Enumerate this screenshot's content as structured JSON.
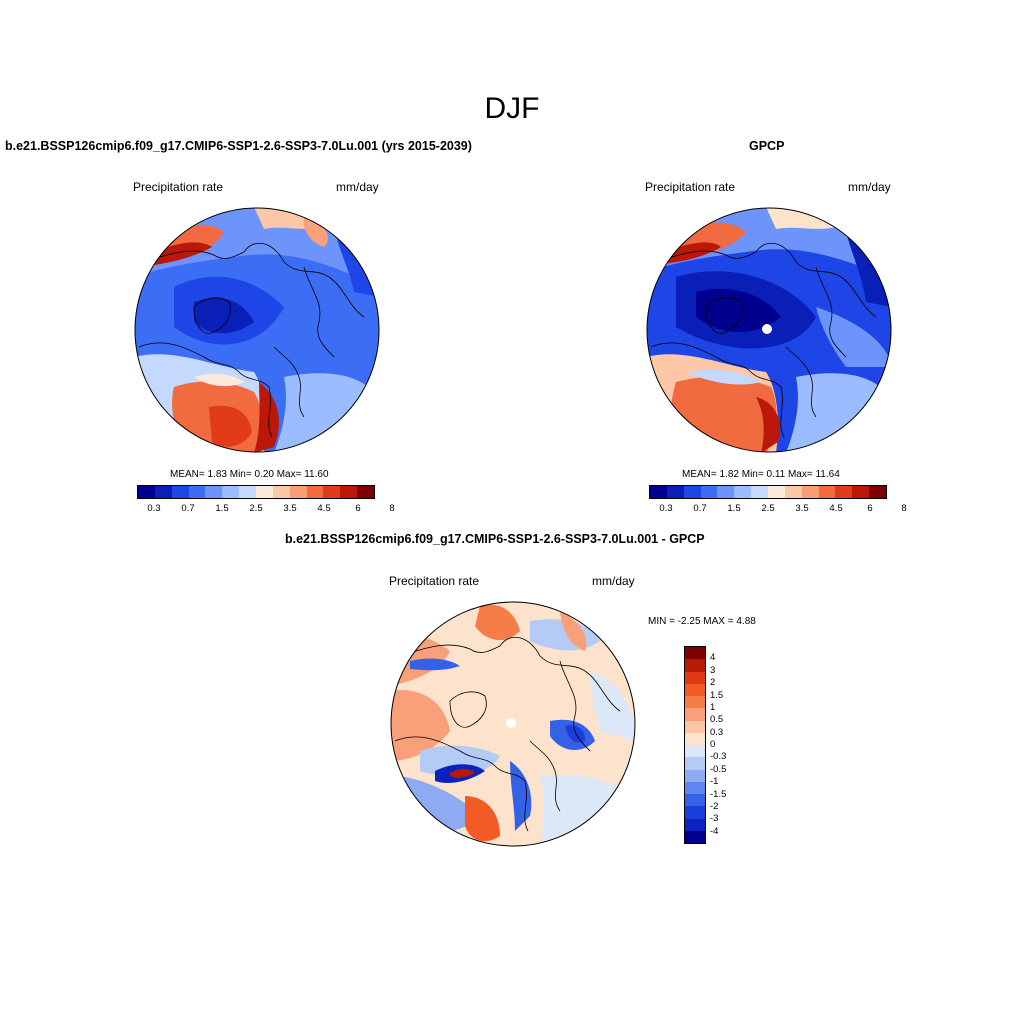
{
  "title": "DJF",
  "panels": {
    "model": {
      "title": "b.e21.BSSP126cmip6.f09_g17.CMIP6-SSP1-2.6-SSP3-7.0Lu.001 (yrs 2015-2039)",
      "left_label": "Precipitation rate",
      "right_label": "mm/day",
      "stats": "MEAN=   1.83  Min=   0.20  Max=  11.60"
    },
    "obs": {
      "title": "GPCP",
      "left_label": "Precipitation rate",
      "right_label": "mm/day",
      "stats": "MEAN=   1.82  Min=   0.11  Max=  11.64"
    },
    "diff": {
      "title": "b.e21.BSSP126cmip6.f09_g17.CMIP6-SSP1-2.6-SSP3-7.0Lu.001 - GPCP",
      "left_label": "Precipitation rate",
      "right_label": "mm/day",
      "stats": "MIN =  -2.25 MAX =   4.88"
    }
  },
  "colorbar_abs": {
    "colors": [
      "#00008f",
      "#0a1fb8",
      "#1e46e6",
      "#3c6ef5",
      "#6c94fa",
      "#9bbcff",
      "#c5d9ff",
      "#fbe9d9",
      "#fcc8a8",
      "#fa9f74",
      "#f26a3f",
      "#e23b1b",
      "#bb1809",
      "#7f0000"
    ],
    "tick_labels": [
      "0.3",
      "0.7",
      "1.5",
      "2.5",
      "3.5",
      "4.5",
      "6",
      "8"
    ]
  },
  "colorbar_diff": {
    "colors": [
      "#7f0000",
      "#b41a06",
      "#dd3a14",
      "#f25a26",
      "#f67d47",
      "#f9a07a",
      "#fcc5a6",
      "#fde3cc",
      "#dce8f8",
      "#b4cbf6",
      "#8cabf3",
      "#5f86ee",
      "#3461e6",
      "#1a3fd8",
      "#0b22bd",
      "#00008f"
    ],
    "tick_labels": [
      "4",
      "3",
      "2",
      "1.5",
      "1",
      "0.5",
      "0.3",
      "0",
      "-0.3",
      "-0.5",
      "-1",
      "-1.5",
      "-2",
      "-3",
      "-4"
    ]
  }
}
